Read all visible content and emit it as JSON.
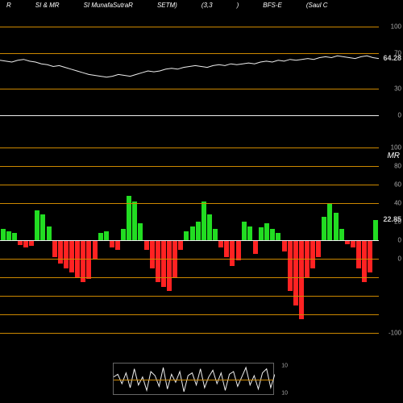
{
  "header": {
    "items": [
      "R",
      "SI & MR",
      "SI MunafaSutraR",
      "SETM)",
      "(3,3",
      ")",
      "BFS-E",
      "(Saul C"
    ]
  },
  "colors": {
    "background": "#000000",
    "orange_line": "#cc8800",
    "white_line": "#eeeeee",
    "text": "#ffffff",
    "axis": "#aaaaaa",
    "positive_bar": "#22dd22",
    "negative_bar": "#ff2222",
    "value_highlight": "#cccccc",
    "mini_zero_line": "#cc8800"
  },
  "top_chart": {
    "ylim": [
      0,
      100
    ],
    "orange_levels": [
      30,
      70,
      100
    ],
    "white_baseline": 0,
    "axis_ticks": [
      {
        "v": 100,
        "label": "100"
      },
      {
        "v": 70,
        "label": "70"
      },
      {
        "v": 30,
        "label": "30"
      },
      {
        "v": 0,
        "label": "0"
      }
    ],
    "current_value": "64.28",
    "line_points": [
      62,
      61,
      60,
      62,
      63,
      61,
      60,
      58,
      57,
      55,
      56,
      54,
      52,
      50,
      48,
      46,
      45,
      44,
      43,
      44,
      46,
      45,
      44,
      46,
      48,
      50,
      49,
      50,
      52,
      53,
      52,
      54,
      55,
      56,
      55,
      54,
      56,
      57,
      56,
      58,
      57,
      58,
      59,
      58,
      60,
      61,
      60,
      62,
      61,
      63,
      62,
      63,
      64,
      63,
      65,
      66,
      65,
      67,
      66,
      65,
      64,
      66,
      67,
      65,
      64
    ]
  },
  "mr_label": "MR",
  "bottom_chart": {
    "ylim": [
      -100,
      100
    ],
    "orange_levels": [
      -100,
      -80,
      -60,
      -40,
      -20,
      40,
      60,
      80,
      100
    ],
    "zero_line": 0,
    "axis_ticks": [
      {
        "v": 100,
        "label": "100"
      },
      {
        "v": 80,
        "label": "80"
      },
      {
        "v": 60,
        "label": "60"
      },
      {
        "v": 40,
        "label": "40"
      },
      {
        "v": 20,
        "label": "20"
      },
      {
        "v": 0,
        "label": "0"
      },
      {
        "v": -20,
        "label": "0"
      },
      {
        "v": -100,
        "label": "-100"
      }
    ],
    "current_value": "22.85",
    "bars": [
      12,
      10,
      8,
      -5,
      -8,
      -6,
      32,
      28,
      15,
      -18,
      -25,
      -30,
      -35,
      -40,
      -45,
      -42,
      -20,
      8,
      10,
      -8,
      -10,
      12,
      48,
      42,
      18,
      -10,
      -30,
      -45,
      -50,
      -55,
      -40,
      -10,
      10,
      15,
      20,
      42,
      28,
      12,
      -8,
      -18,
      -28,
      -22,
      20,
      15,
      -15,
      14,
      18,
      12,
      8,
      -12,
      -55,
      -70,
      -85,
      -40,
      -30,
      -18,
      25,
      40,
      30,
      12,
      -4,
      -8,
      -30,
      -45,
      -35,
      22
    ]
  },
  "mini_chart": {
    "ylim": [
      -12,
      12
    ],
    "ticks": [
      {
        "v": 10,
        "label": "10"
      },
      {
        "v": -10,
        "label": "10"
      }
    ],
    "line_points": [
      2,
      4,
      -3,
      5,
      -6,
      8,
      -4,
      2,
      -8,
      6,
      3,
      -5,
      9,
      -7,
      4,
      -2,
      6,
      -9,
      3,
      5,
      -4,
      8,
      -6,
      2,
      7,
      -3,
      5,
      -8,
      4,
      6,
      -5,
      2,
      9,
      -4,
      3,
      -7,
      5,
      8,
      -6,
      4
    ]
  }
}
